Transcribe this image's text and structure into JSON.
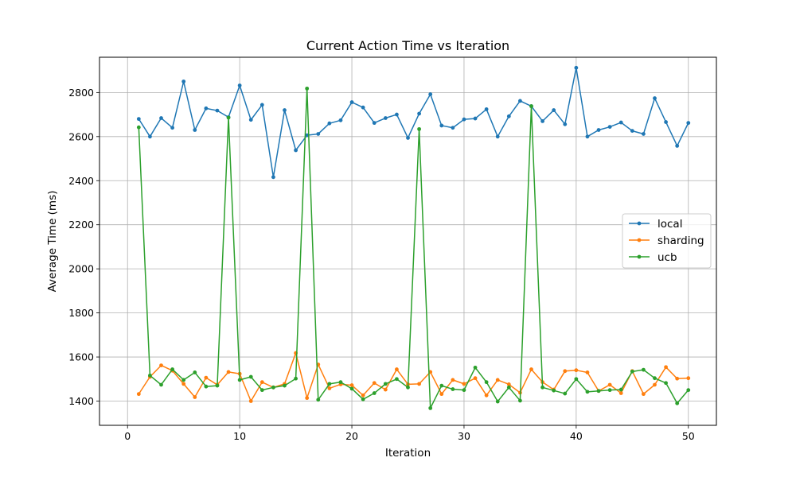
{
  "chart_data": {
    "type": "line",
    "title": "Current Action Time vs Iteration",
    "xlabel": "Iteration",
    "ylabel": "Average Time (ms)",
    "xlim": [
      -2.5,
      52.5
    ],
    "ylim": [
      1290,
      2960
    ],
    "xticks": [
      0,
      10,
      20,
      30,
      40,
      50
    ],
    "yticks": [
      1400,
      1600,
      1800,
      2000,
      2200,
      2400,
      2600,
      2800
    ],
    "grid": true,
    "legend_position": "center-right",
    "x": [
      1,
      2,
      3,
      4,
      5,
      6,
      7,
      8,
      9,
      10,
      11,
      12,
      13,
      14,
      15,
      16,
      17,
      18,
      19,
      20,
      21,
      22,
      23,
      24,
      25,
      26,
      27,
      28,
      29,
      30,
      31,
      32,
      33,
      34,
      35,
      36,
      37,
      38,
      39,
      40,
      41,
      42,
      43,
      44,
      45,
      46,
      47,
      48,
      49,
      50
    ],
    "series": [
      {
        "name": "local",
        "color": "#1f77b4",
        "values": [
          2680,
          2600,
          2684,
          2640,
          2850,
          2630,
          2728,
          2718,
          2688,
          2832,
          2676,
          2744,
          2416,
          2720,
          2538,
          2606,
          2612,
          2660,
          2674,
          2756,
          2732,
          2662,
          2684,
          2700,
          2594,
          2704,
          2792,
          2650,
          2640,
          2678,
          2682,
          2724,
          2600,
          2692,
          2762,
          2738,
          2670,
          2720,
          2656,
          2912,
          2600,
          2630,
          2644,
          2664,
          2626,
          2612,
          2774,
          2666,
          2558,
          2662
        ]
      },
      {
        "name": "sharding",
        "color": "#ff7f0e",
        "values": [
          1432,
          1510,
          1562,
          1538,
          1478,
          1418,
          1506,
          1474,
          1532,
          1524,
          1400,
          1486,
          1462,
          1478,
          1618,
          1414,
          1566,
          1458,
          1476,
          1472,
          1426,
          1482,
          1452,
          1544,
          1476,
          1478,
          1532,
          1432,
          1496,
          1478,
          1504,
          1426,
          1496,
          1476,
          1438,
          1544,
          1486,
          1452,
          1536,
          1540,
          1530,
          1446,
          1474,
          1436,
          1536,
          1432,
          1474,
          1554,
          1502,
          1504
        ]
      },
      {
        "name": "ucb",
        "color": "#2ca02c",
        "values": [
          2642,
          1516,
          1474,
          1544,
          1496,
          1530,
          1466,
          1470,
          2686,
          1496,
          1510,
          1450,
          1462,
          1470,
          1502,
          2818,
          1406,
          1478,
          1486,
          1456,
          1408,
          1436,
          1478,
          1500,
          1462,
          2634,
          1368,
          1470,
          1454,
          1450,
          1552,
          1486,
          1398,
          1462,
          1402,
          2738,
          1462,
          1448,
          1434,
          1500,
          1442,
          1446,
          1450,
          1452,
          1534,
          1542,
          1504,
          1482,
          1390,
          1450
        ]
      }
    ]
  }
}
